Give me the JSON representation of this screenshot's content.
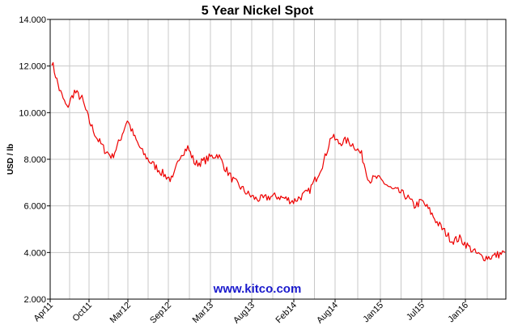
{
  "colors": {
    "series": "#ee0000",
    "grid": "#c8c8c8",
    "watermark": "#1a1acc",
    "frame": "#000000"
  },
  "chart_data": {
    "type": "line",
    "title": "5 Year Nickel Spot",
    "ylabel": "USD / lb",
    "xlabel": "",
    "ylim": [
      2,
      14
    ],
    "y_ticks": [
      "2.000",
      "4.000",
      "6.000",
      "8.000",
      "10.000",
      "12.000",
      "14.000"
    ],
    "x_ticks": [
      "Apr11",
      "Oct11",
      "Mar12",
      "Sep12",
      "Mar13",
      "Aug13",
      "Feb14",
      "Aug14",
      "Jan15",
      "Jul15",
      "Jan16"
    ],
    "grid": true,
    "legend": "none",
    "watermark": "www.kitco.com",
    "series": [
      {
        "x": [
          "2011-04",
          "2011-05",
          "2011-06",
          "2011-07",
          "2011-08",
          "2011-09",
          "2011-10",
          "2011-11",
          "2011-12",
          "2012-01",
          "2012-02",
          "2012-03",
          "2012-04",
          "2012-05",
          "2012-06",
          "2012-07",
          "2012-08",
          "2012-09",
          "2012-10",
          "2012-11",
          "2012-12",
          "2013-01",
          "2013-02",
          "2013-03",
          "2013-04",
          "2013-05",
          "2013-06",
          "2013-07",
          "2013-08",
          "2013-09",
          "2013-10",
          "2013-11",
          "2013-12",
          "2014-01",
          "2014-02",
          "2014-03",
          "2014-04",
          "2014-05",
          "2014-06",
          "2014-07",
          "2014-08",
          "2014-09",
          "2014-10",
          "2014-11",
          "2014-12",
          "2015-01",
          "2015-02",
          "2015-03",
          "2015-04",
          "2015-05",
          "2015-06",
          "2015-07",
          "2015-08",
          "2015-09",
          "2015-10",
          "2015-11",
          "2015-12",
          "2016-01",
          "2016-02",
          "2016-03",
          "2016-04"
        ],
        "values": [
          12.2,
          11.0,
          10.2,
          10.9,
          10.6,
          9.6,
          8.9,
          8.4,
          8.1,
          8.8,
          9.7,
          8.9,
          8.3,
          7.9,
          7.6,
          7.3,
          7.1,
          8.2,
          8.5,
          7.8,
          7.9,
          8.1,
          8.2,
          7.6,
          7.1,
          6.8,
          6.5,
          6.3,
          6.3,
          6.4,
          6.4,
          6.3,
          6.2,
          6.4,
          6.6,
          7.2,
          7.9,
          9.0,
          8.7,
          8.8,
          8.6,
          8.2,
          7.1,
          7.2,
          7.0,
          6.7,
          6.6,
          6.4,
          6.0,
          6.2,
          5.8,
          5.3,
          4.9,
          4.5,
          4.6,
          4.3,
          4.0,
          3.8,
          3.8,
          3.9,
          4.0
        ]
      }
    ]
  }
}
